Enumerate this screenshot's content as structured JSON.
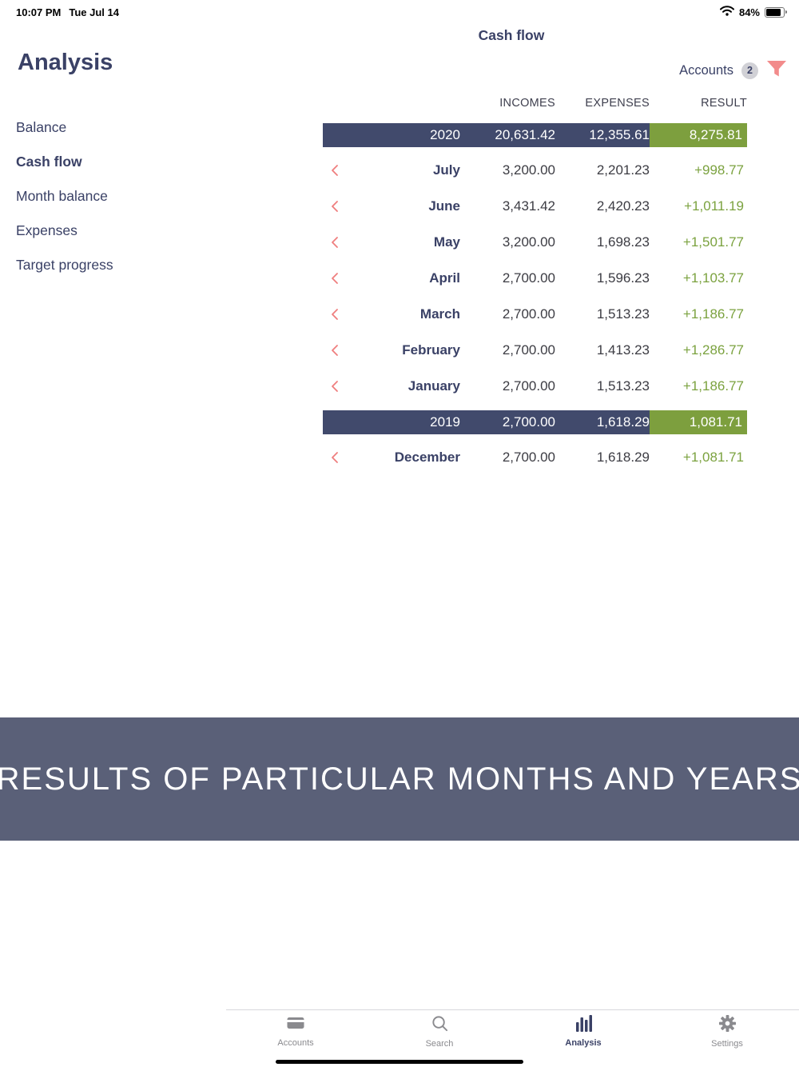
{
  "status_bar": {
    "time": "10:07 PM",
    "date": "Tue Jul 14",
    "battery_percent": "84%"
  },
  "nav": {
    "title": "Cash flow"
  },
  "filter_bar": {
    "accounts_label": "Accounts",
    "accounts_count": "2"
  },
  "sidebar": {
    "title": "Analysis",
    "items": [
      {
        "label": "Balance",
        "active": false
      },
      {
        "label": "Cash flow",
        "active": true
      },
      {
        "label": "Month balance",
        "active": false
      },
      {
        "label": "Expenses",
        "active": false
      },
      {
        "label": "Target progress",
        "active": false
      }
    ]
  },
  "table": {
    "columns": [
      "INCOMES",
      "EXPENSES",
      "RESULT"
    ],
    "groups": [
      {
        "year": "2020",
        "incomes": "20,631.42",
        "expenses": "12,355.61",
        "result": "8,275.81",
        "months": [
          {
            "name": "July",
            "incomes": "3,200.00",
            "expenses": "2,201.23",
            "result": "+998.77"
          },
          {
            "name": "June",
            "incomes": "3,431.42",
            "expenses": "2,420.23",
            "result": "+1,011.19"
          },
          {
            "name": "May",
            "incomes": "3,200.00",
            "expenses": "1,698.23",
            "result": "+1,501.77"
          },
          {
            "name": "April",
            "incomes": "2,700.00",
            "expenses": "1,596.23",
            "result": "+1,103.77"
          },
          {
            "name": "March",
            "incomes": "2,700.00",
            "expenses": "1,513.23",
            "result": "+1,186.77"
          },
          {
            "name": "February",
            "incomes": "2,700.00",
            "expenses": "1,413.23",
            "result": "+1,286.77"
          },
          {
            "name": "January",
            "incomes": "2,700.00",
            "expenses": "1,513.23",
            "result": "+1,186.77"
          }
        ]
      },
      {
        "year": "2019",
        "incomes": "2,700.00",
        "expenses": "1,618.29",
        "result": "1,081.71",
        "months": [
          {
            "name": "December",
            "incomes": "2,700.00",
            "expenses": "1,618.29",
            "result": "+1,081.71"
          }
        ]
      }
    ]
  },
  "banner": {
    "text": "RESULTS OF PARTICULAR MONTHS AND YEARS"
  },
  "tab_bar": {
    "items": [
      {
        "label": "Accounts",
        "icon": "cards-icon",
        "active": false
      },
      {
        "label": "Search",
        "icon": "search-icon",
        "active": false
      },
      {
        "label": "Analysis",
        "icon": "chart-bars-icon",
        "active": true
      },
      {
        "label": "Settings",
        "icon": "gear-icon",
        "active": false
      }
    ]
  },
  "colors": {
    "navy": "#3a4166",
    "year_row_bg": "#414a6c",
    "result_green_bg": "#7d9f3e",
    "result_green_text": "#7ba23f",
    "chevron_pink": "#ef7e7e",
    "banner_bg": "#5a6078",
    "tab_inactive": "#8a8a8e"
  }
}
